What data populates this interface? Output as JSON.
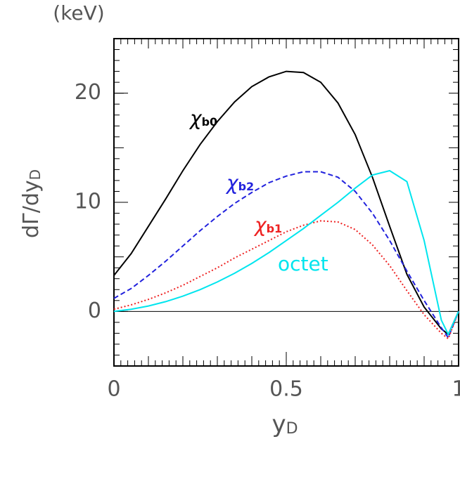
{
  "chart_data": {
    "type": "line",
    "unit_label": "(keV)",
    "ylabel": {
      "main": "dΓ/dy",
      "sub": "D"
    },
    "xlabel": {
      "main": "y",
      "sub": "D"
    },
    "x": [
      0,
      0.05,
      0.1,
      0.15,
      0.2,
      0.25,
      0.3,
      0.35,
      0.4,
      0.45,
      0.5,
      0.55,
      0.6,
      0.65,
      0.7,
      0.75,
      0.8,
      0.85,
      0.9,
      0.95,
      0.97,
      1
    ],
    "series": [
      {
        "label": "χ",
        "label_sub": "b0",
        "color": "#000000",
        "dash": "solid",
        "values": [
          3.3,
          5.3,
          7.8,
          10.3,
          12.9,
          15.3,
          17.4,
          19.2,
          20.6,
          21.5,
          22.0,
          21.9,
          21.0,
          19.1,
          16.2,
          12.3,
          7.8,
          3.4,
          0.4,
          -1.6,
          -2.1,
          0
        ]
      },
      {
        "label": "χ",
        "label_sub": "b2",
        "color": "#2222dd",
        "dash": "dashed",
        "values": [
          1.2,
          2.1,
          3.3,
          4.6,
          6.0,
          7.4,
          8.7,
          9.9,
          10.9,
          11.8,
          12.4,
          12.8,
          12.8,
          12.3,
          11.0,
          9.0,
          6.5,
          3.7,
          1.0,
          -1.5,
          -2.4,
          0
        ]
      },
      {
        "label": "χ",
        "label_sub": "b1",
        "color": "#ee2222",
        "dash": "dotted",
        "values": [
          0.2,
          0.6,
          1.1,
          1.7,
          2.4,
          3.2,
          4.0,
          4.9,
          5.7,
          6.5,
          7.3,
          7.9,
          8.3,
          8.2,
          7.5,
          6.1,
          4.2,
          1.9,
          -0.3,
          -2.0,
          -2.5,
          0
        ]
      },
      {
        "label": "octet",
        "color": "#00e5ee",
        "dash": "solid",
        "values": [
          0,
          0.2,
          0.5,
          0.9,
          1.4,
          2.0,
          2.7,
          3.5,
          4.4,
          5.4,
          6.5,
          7.6,
          8.8,
          10.0,
          11.3,
          12.5,
          12.9,
          11.9,
          6.5,
          -0.8,
          -2.1,
          0
        ]
      }
    ],
    "xlim": [
      0,
      1
    ],
    "xticks": [
      0,
      0.5,
      1
    ],
    "ylim": [
      -5,
      25
    ],
    "yticks": [
      0,
      10,
      20
    ]
  }
}
